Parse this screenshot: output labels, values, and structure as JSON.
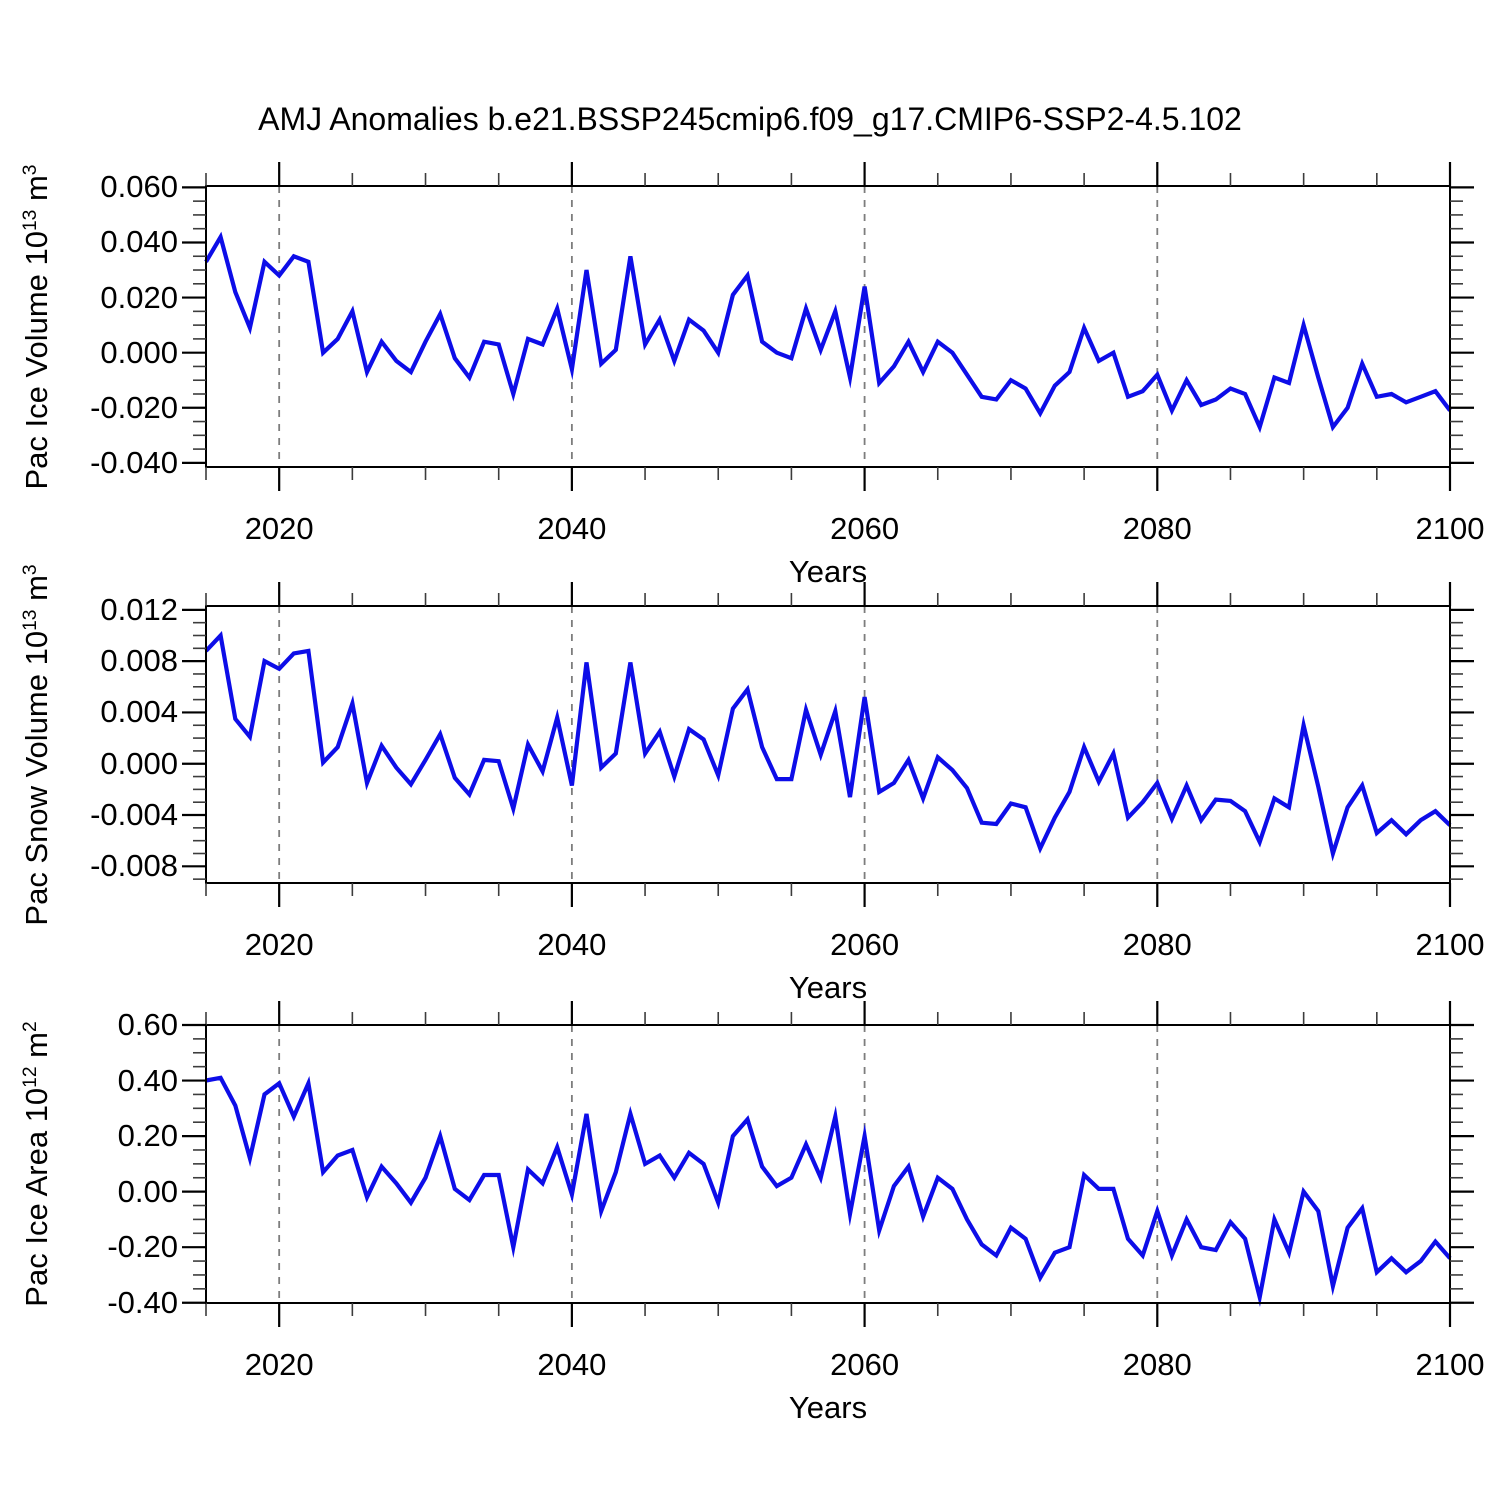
{
  "title": "AMJ Anomalies b.e21.BSSP245cmip6.f09_g17.CMIP6-SSP2-4.5.102",
  "line_color": "#0d0de8",
  "grid_color": "#7d7d7d",
  "frame_color": "#000000",
  "chart_data": [
    {
      "type": "line",
      "name": "pac-ice-volume",
      "ylabel": "Pac Ice Volume 10^13 m^3",
      "ylabel_parts": [
        {
          "t": "Pac Ice Volume 10"
        },
        {
          "t": "13",
          "sup": true
        },
        {
          "t": " m"
        },
        {
          "t": "3",
          "sup": true
        }
      ],
      "xlabel": "Years",
      "x_start": 2015,
      "x_end": 2100,
      "x_step": 1,
      "xlim": [
        2015,
        2100
      ],
      "ylim": [
        -0.0415,
        0.0605
      ],
      "xticks": [
        2020,
        2040,
        2060,
        2080,
        2100
      ],
      "xtick_labels": [
        "2020",
        "2040",
        "2060",
        "2080",
        "2100"
      ],
      "xminor_step": 5,
      "grid_x": [
        2020,
        2040,
        2060,
        2080
      ],
      "yticks": [
        0.06,
        0.04,
        0.02,
        0,
        -0.02,
        -0.04
      ],
      "ytick_labels": [
        "0.060",
        "0.040",
        "0.020",
        "0.000",
        "-0.020",
        "-0.040"
      ],
      "ymajor_step": 0.02,
      "yminor_step": 0.005,
      "values": [
        0.033,
        0.042,
        0.022,
        0.009,
        0.033,
        0.028,
        0.035,
        0.033,
        0.0,
        0.005,
        0.015,
        -0.007,
        0.004,
        -0.003,
        -0.007,
        0.004,
        0.014,
        -0.002,
        -0.009,
        0.004,
        0.003,
        -0.015,
        0.005,
        0.003,
        0.016,
        -0.006,
        0.03,
        -0.004,
        0.001,
        0.035,
        0.003,
        0.012,
        -0.003,
        0.012,
        0.008,
        0.0,
        0.021,
        0.028,
        0.004,
        0.0,
        -0.002,
        0.016,
        0.001,
        0.015,
        -0.009,
        0.024,
        -0.011,
        -0.005,
        0.004,
        -0.007,
        0.004,
        0.0,
        -0.008,
        -0.016,
        -0.017,
        -0.01,
        -0.013,
        -0.022,
        -0.012,
        -0.007,
        0.009,
        -0.003,
        0.0,
        -0.016,
        -0.014,
        -0.008,
        -0.021,
        -0.01,
        -0.019,
        -0.017,
        -0.013,
        -0.015,
        -0.027,
        -0.009,
        -0.011,
        0.01,
        -0.009,
        -0.027,
        -0.02,
        -0.004,
        -0.016,
        -0.015,
        -0.018,
        -0.016,
        -0.014,
        -0.021
      ]
    },
    {
      "type": "line",
      "name": "pac-snow-volume",
      "ylabel": "Pac Snow Volume 10^13 m^3",
      "ylabel_parts": [
        {
          "t": "Pac Snow Volume 10"
        },
        {
          "t": "13",
          "sup": true
        },
        {
          "t": " m"
        },
        {
          "t": "3",
          "sup": true
        }
      ],
      "xlabel": "Years",
      "x_start": 2015,
      "x_end": 2100,
      "x_step": 1,
      "xlim": [
        2015,
        2100
      ],
      "ylim": [
        -0.0093,
        0.0123
      ],
      "xticks": [
        2020,
        2040,
        2060,
        2080,
        2100
      ],
      "xtick_labels": [
        "2020",
        "2040",
        "2060",
        "2080",
        "2100"
      ],
      "xminor_step": 5,
      "grid_x": [
        2020,
        2040,
        2060,
        2080
      ],
      "yticks": [
        0.012,
        0.008,
        0.004,
        0,
        -0.004,
        -0.008
      ],
      "ytick_labels": [
        "0.012",
        "0.008",
        "0.004",
        "0.000",
        "-0.004",
        "-0.008"
      ],
      "ymajor_step": 0.004,
      "yminor_step": 0.001,
      "values": [
        0.0088,
        0.01,
        0.0035,
        0.0021,
        0.008,
        0.0074,
        0.0086,
        0.0088,
        0.0001,
        0.0013,
        0.0047,
        -0.0015,
        0.0014,
        -0.0003,
        -0.0016,
        0.0003,
        0.0023,
        -0.0011,
        -0.0024,
        0.0003,
        0.0002,
        -0.0035,
        0.0015,
        -0.0006,
        0.0036,
        -0.0017,
        0.0079,
        -0.0003,
        0.0008,
        0.0079,
        0.0008,
        0.0025,
        -0.001,
        0.0027,
        0.0019,
        -0.0009,
        0.0043,
        0.0058,
        0.0013,
        -0.0012,
        -0.0012,
        0.0042,
        0.0007,
        0.0041,
        -0.0026,
        0.0052,
        -0.0022,
        -0.0015,
        0.0003,
        -0.0027,
        0.0005,
        -0.0005,
        -0.0019,
        -0.0046,
        -0.0047,
        -0.0031,
        -0.0034,
        -0.0066,
        -0.0042,
        -0.0022,
        0.0013,
        -0.0014,
        0.0008,
        -0.0042,
        -0.003,
        -0.0015,
        -0.0043,
        -0.0017,
        -0.0044,
        -0.0028,
        -0.0029,
        -0.0037,
        -0.0061,
        -0.0027,
        -0.0034,
        0.003,
        -0.0018,
        -0.007,
        -0.0034,
        -0.0017,
        -0.0054,
        -0.0044,
        -0.0055,
        -0.0044,
        -0.0037,
        -0.0048
      ]
    },
    {
      "type": "line",
      "name": "pac-ice-area",
      "ylabel": "Pac Ice Area 10^12 m^2",
      "ylabel_parts": [
        {
          "t": "Pac Ice Area 10"
        },
        {
          "t": "12",
          "sup": true
        },
        {
          "t": " m"
        },
        {
          "t": "2",
          "sup": true
        }
      ],
      "xlabel": "Years",
      "x_start": 2015,
      "x_end": 2100,
      "x_step": 1,
      "xlim": [
        2015,
        2100
      ],
      "ylim": [
        -0.401,
        0.6
      ],
      "xticks": [
        2020,
        2040,
        2060,
        2080,
        2100
      ],
      "xtick_labels": [
        "2020",
        "2040",
        "2060",
        "2080",
        "2100"
      ],
      "xminor_step": 5,
      "grid_x": [
        2020,
        2040,
        2060,
        2080
      ],
      "yticks": [
        0.6,
        0.4,
        0.2,
        0,
        -0.2,
        -0.4
      ],
      "ytick_labels": [
        "0.60",
        "0.40",
        "0.20",
        "0.00",
        "-0.20",
        "-0.40"
      ],
      "ymajor_step": 0.2,
      "yminor_step": 0.05,
      "values": [
        0.4,
        0.41,
        0.31,
        0.12,
        0.35,
        0.39,
        0.27,
        0.39,
        0.07,
        0.13,
        0.15,
        -0.02,
        0.09,
        0.03,
        -0.04,
        0.05,
        0.2,
        0.01,
        -0.03,
        0.06,
        0.06,
        -0.2,
        0.08,
        0.03,
        0.16,
        -0.01,
        0.28,
        -0.07,
        0.07,
        0.28,
        0.1,
        0.13,
        0.05,
        0.14,
        0.1,
        -0.04,
        0.2,
        0.26,
        0.09,
        0.02,
        0.05,
        0.17,
        0.05,
        0.27,
        -0.08,
        0.2,
        -0.14,
        0.02,
        0.09,
        -0.09,
        0.05,
        0.01,
        -0.1,
        -0.19,
        -0.23,
        -0.13,
        -0.17,
        -0.31,
        -0.22,
        -0.2,
        0.06,
        0.01,
        0.01,
        -0.17,
        -0.23,
        -0.07,
        -0.23,
        -0.1,
        -0.2,
        -0.21,
        -0.11,
        -0.17,
        -0.38,
        -0.1,
        -0.22,
        0.0,
        -0.07,
        -0.34,
        -0.13,
        -0.06,
        -0.29,
        -0.24,
        -0.29,
        -0.25,
        -0.18,
        -0.24
      ]
    }
  ]
}
